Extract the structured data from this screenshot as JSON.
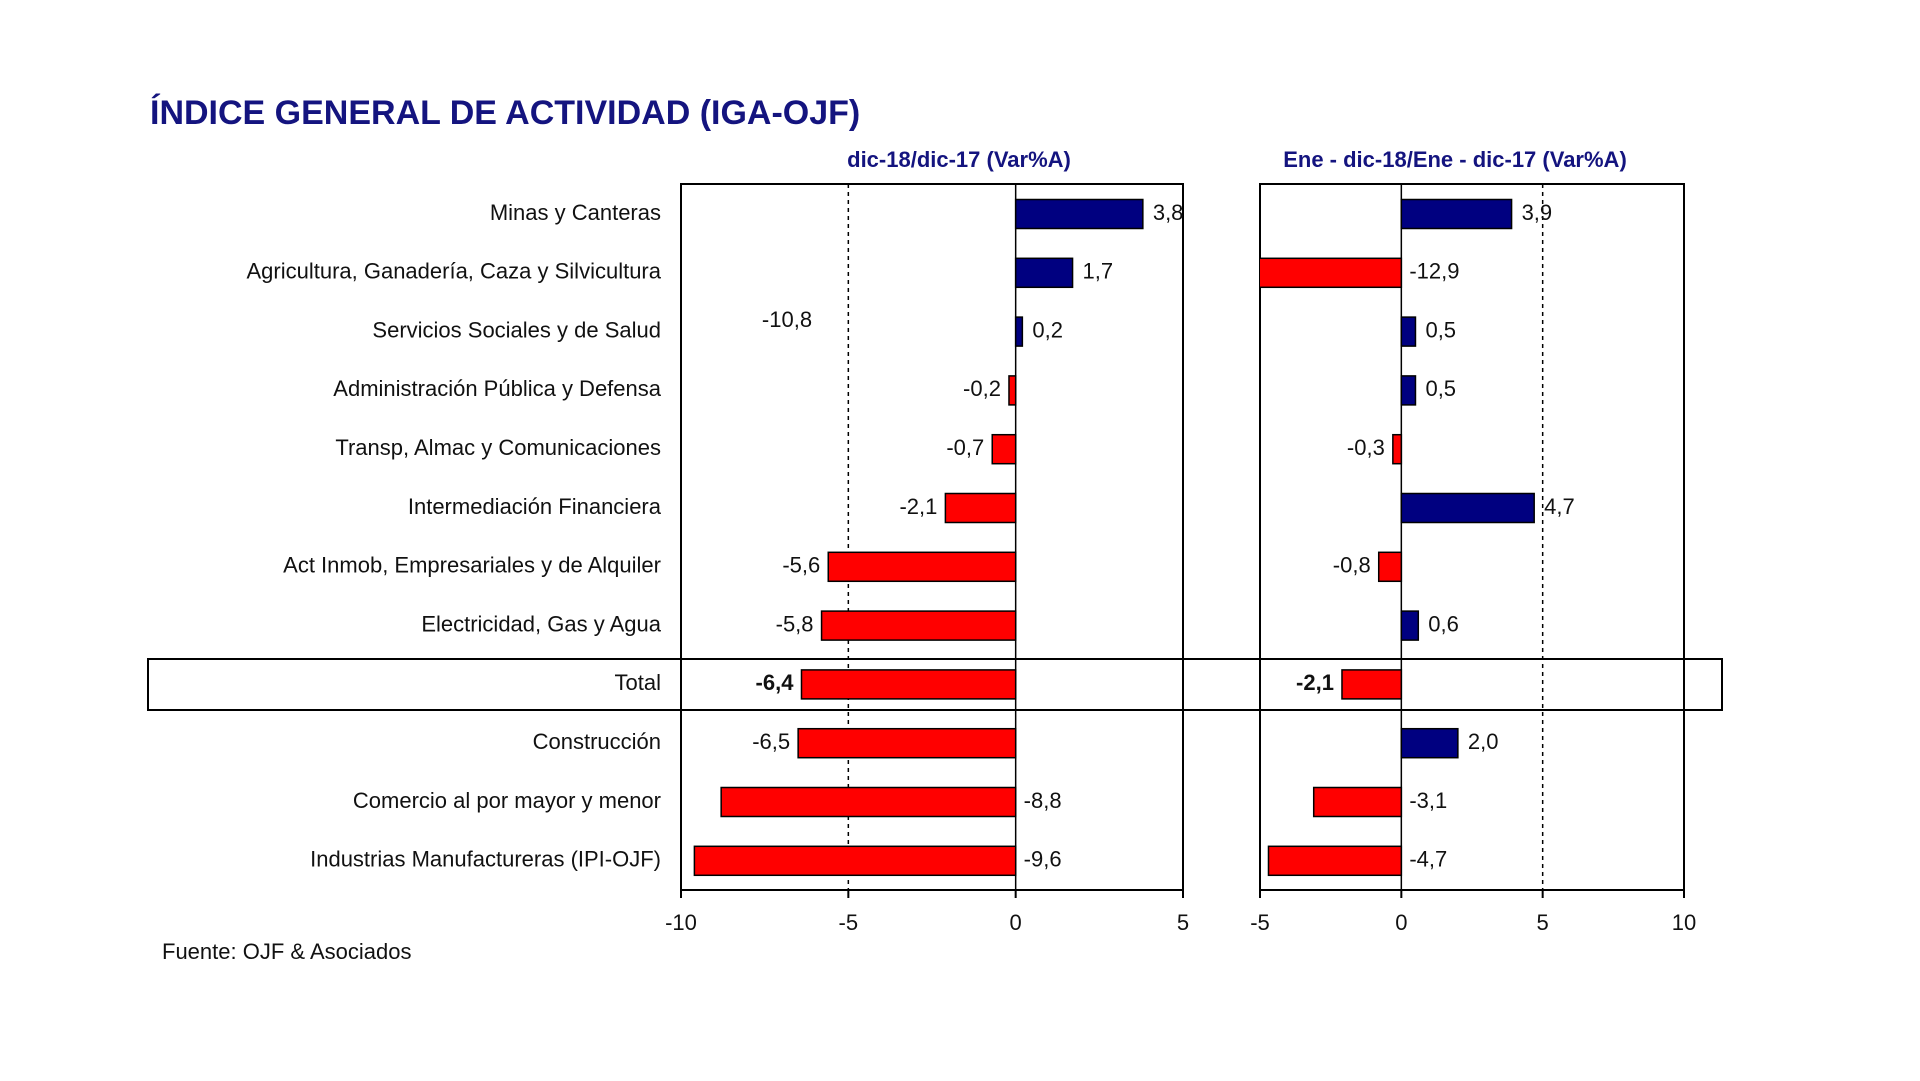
{
  "chart_data": [
    {
      "type": "bar",
      "orientation": "horizontal",
      "title": "ÍNDICE GENERAL DE ACTIVIDAD (IGA-OJF)",
      "subtitle": "dic-18/dic-17  (Var%A)",
      "categories": [
        "Minas y Canteras",
        "Agricultura, Ganadería, Caza y Silvicultura",
        "Servicios Sociales y de Salud",
        "Administración Pública y Defensa",
        "Transp, Almac y Comunicaciones",
        "Intermediación Financiera",
        "Act Inmob, Empresariales y de Alquiler",
        "Electricidad, Gas y Agua",
        "Total",
        "Construcción",
        "Comercio al por mayor y menor",
        "Industrias Manufactureras (IPI-OJF)"
      ],
      "values": [
        3.8,
        1.7,
        0.2,
        -0.2,
        -0.7,
        -2.1,
        -5.6,
        -5.8,
        -6.4,
        -6.5,
        -8.8,
        -9.6
      ],
      "value_labels": [
        "3,8",
        "1,7",
        "0,2",
        "-0,2",
        "-0,7",
        "-2,1",
        "-5,6",
        "-5,8",
        "-6,4",
        "-6,5",
        "-8,8",
        "-9,6"
      ],
      "xlim": [
        -10,
        5
      ],
      "xticks": [
        -10,
        -5,
        0,
        5
      ],
      "positive_color": "#000080",
      "negative_color": "#ff0000",
      "annotation": "-10,8",
      "source": "Fuente: OJF & Asociados"
    },
    {
      "type": "bar",
      "orientation": "horizontal",
      "subtitle": "Ene - dic-18/Ene - dic-17  (Var%A)",
      "values": [
        3.9,
        -12.9,
        0.5,
        0.5,
        -0.3,
        4.7,
        -0.8,
        0.6,
        -2.1,
        2.0,
        -3.1,
        -4.7
      ],
      "value_labels": [
        "3,9",
        "-12,9",
        "0,5",
        "0,5",
        "-0,3",
        "4,7",
        "-0,8",
        "0,6",
        "-2,1",
        "2,0",
        "-3,1",
        "-4,7"
      ],
      "xlim": [
        -5,
        10
      ],
      "xticks": [
        -5,
        0,
        5,
        10
      ],
      "positive_color": "#000080",
      "negative_color": "#ff0000"
    }
  ]
}
